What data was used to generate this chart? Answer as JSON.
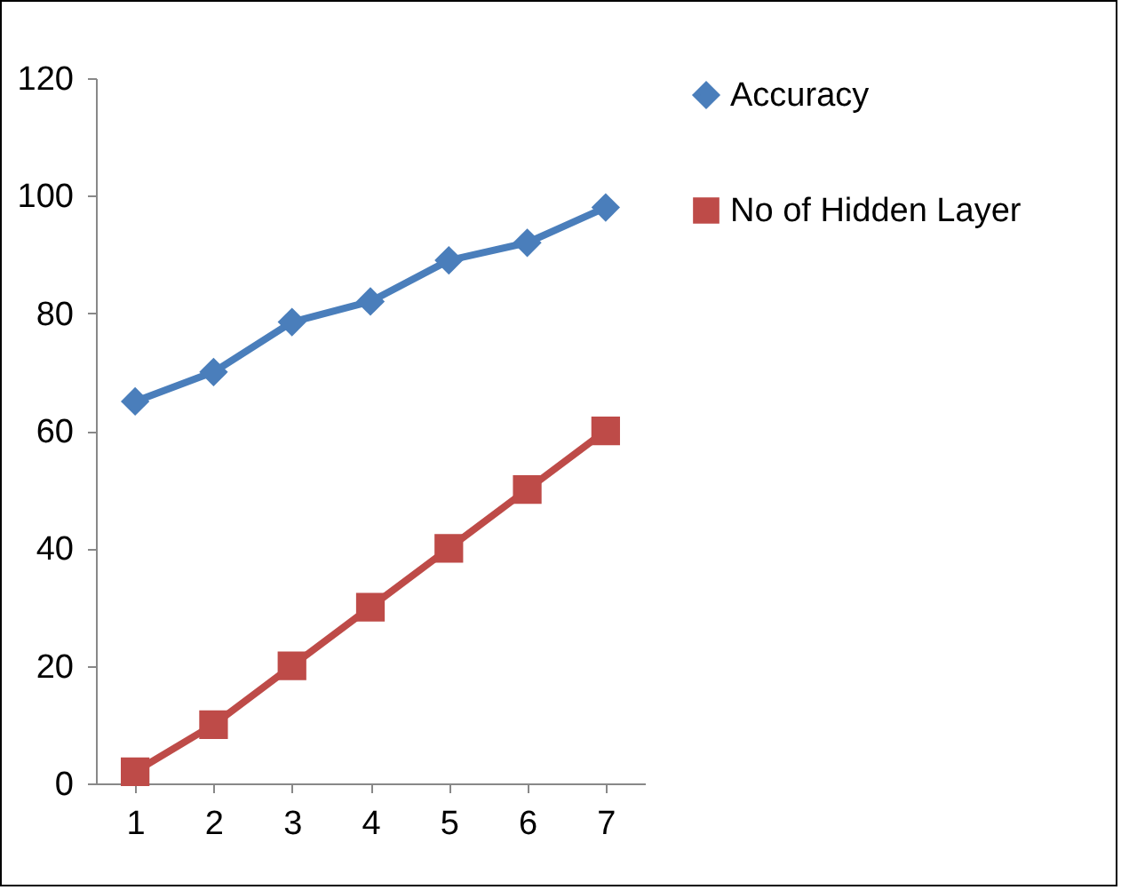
{
  "chart_data": {
    "type": "line",
    "categories": [
      "1",
      "2",
      "3",
      "4",
      "5",
      "6",
      "7"
    ],
    "series": [
      {
        "name": "Accuracy",
        "color": "#4a7ebb",
        "marker": "diamond",
        "values": [
          65,
          70,
          78.5,
          82,
          89,
          92,
          98
        ]
      },
      {
        "name": "No of Hidden Layer",
        "color": "#be4b48",
        "marker": "square",
        "values": [
          2,
          10,
          20,
          30,
          40,
          50,
          60
        ]
      }
    ],
    "ylim": [
      0,
      120
    ],
    "yticks": [
      0,
      20,
      40,
      60,
      80,
      100,
      120
    ],
    "grid": false,
    "legend": "right",
    "line_style": "solid"
  }
}
